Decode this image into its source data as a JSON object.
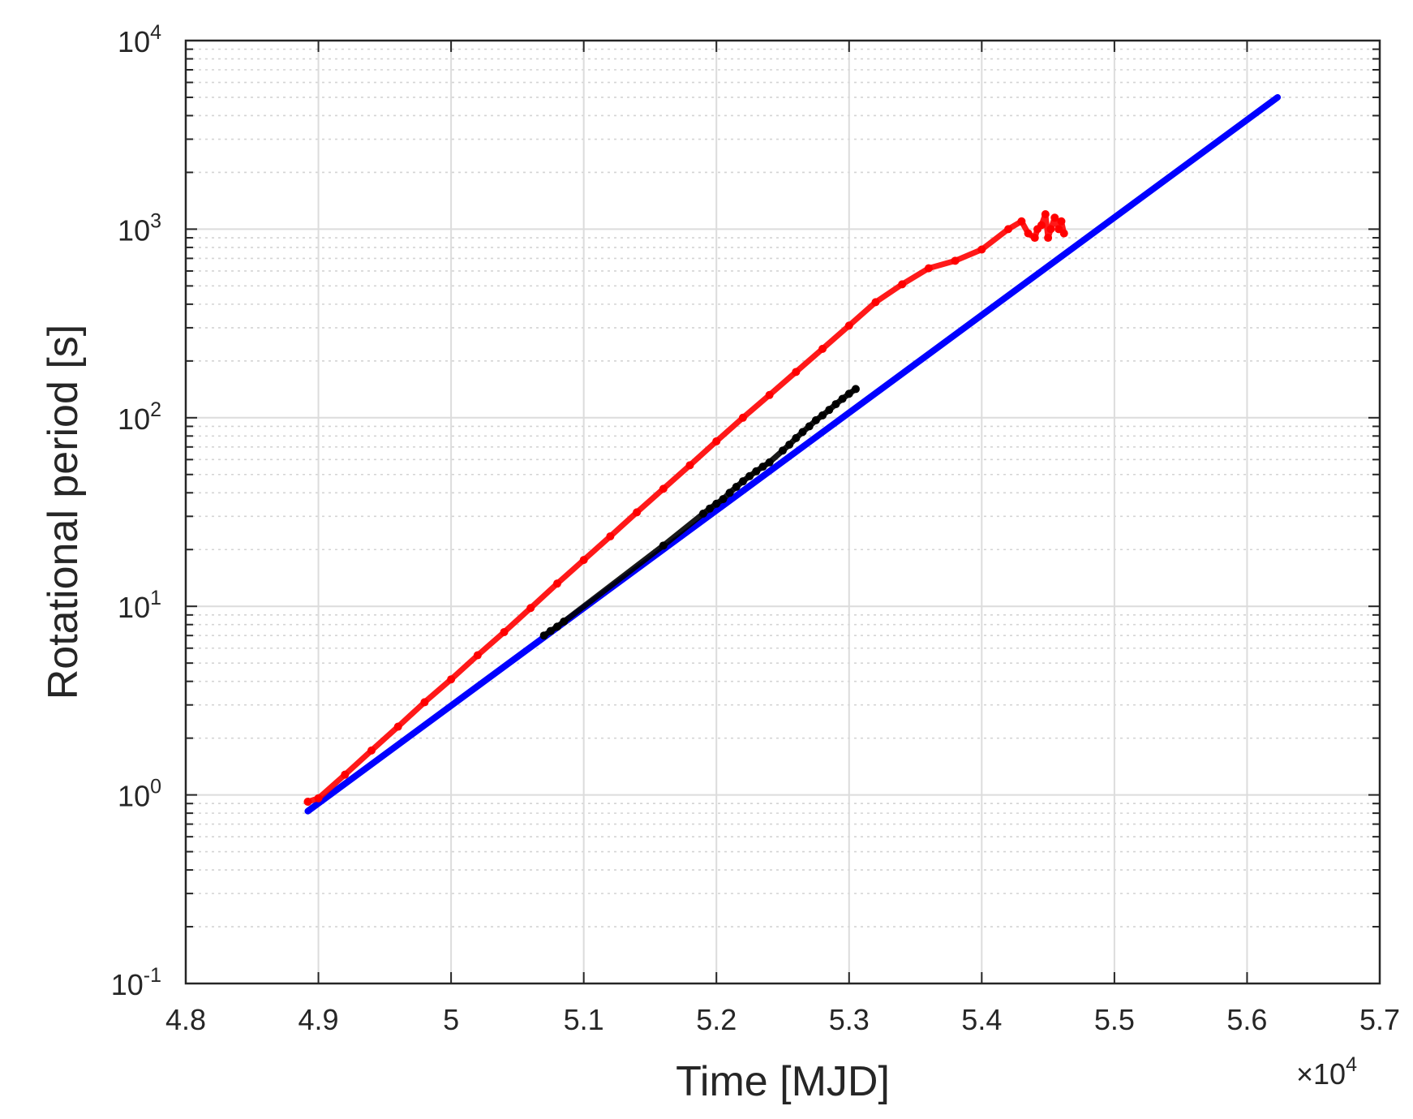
{
  "chart_data": {
    "type": "line",
    "xlabel": "Time [MJD]",
    "ylabel": "Rotational period [s]",
    "x_multiplier_label": "×10",
    "x_multiplier_exponent": "4",
    "x_scale": "linear",
    "y_scale": "log",
    "xlim": [
      48000,
      57000
    ],
    "ylim": [
      0.1,
      10000
    ],
    "x_ticks": [
      48000,
      49000,
      50000,
      51000,
      52000,
      53000,
      54000,
      55000,
      56000,
      57000
    ],
    "x_tick_labels": [
      "4.8",
      "4.9",
      "5",
      "5.1",
      "5.2",
      "5.3",
      "5.4",
      "5.5",
      "5.6",
      "5.7"
    ],
    "y_ticks": [
      0.1,
      1,
      10,
      100,
      1000,
      10000
    ],
    "y_tick_labels": [
      {
        "base": "10",
        "exp": "-1"
      },
      {
        "base": "10",
        "exp": "0"
      },
      {
        "base": "10",
        "exp": "1"
      },
      {
        "base": "10",
        "exp": "2"
      },
      {
        "base": "10",
        "exp": "3"
      },
      {
        "base": "10",
        "exp": "4"
      }
    ],
    "grid": true,
    "minor_grid": true,
    "series": [
      {
        "style": "line",
        "color": "#0000ff",
        "x": [
          48920,
          56230
        ],
        "y": [
          0.82,
          5000
        ]
      },
      {
        "style": "dots",
        "color": "#ff0000",
        "x": [
          48920,
          49000,
          49200,
          49400,
          49600,
          49800,
          50000,
          50200,
          50400,
          50600,
          50800,
          51000,
          51200,
          51400,
          51600,
          51800,
          52000,
          52200,
          52400,
          52600,
          52800,
          53000,
          53200,
          53400,
          53600,
          53800,
          54000,
          54200,
          54300,
          54350,
          54400,
          54420,
          54450,
          54480,
          54500,
          54520,
          54550,
          54580,
          54600,
          54620
        ],
        "y": [
          0.92,
          0.96,
          1.28,
          1.72,
          2.3,
          3.1,
          4.1,
          5.5,
          7.3,
          9.8,
          13.2,
          17.6,
          23.5,
          31.5,
          42,
          56,
          75,
          100,
          132,
          175,
          232,
          308,
          410,
          510,
          620,
          680,
          780,
          1000,
          1100,
          950,
          900,
          1000,
          1050,
          1200,
          900,
          1000,
          1150,
          1000,
          1100,
          950
        ]
      },
      {
        "style": "dots",
        "color": "#000000",
        "x": [
          50700,
          50750,
          50800,
          50850,
          51600,
          51900,
          51950,
          52000,
          52050,
          52100,
          52150,
          52200,
          52250,
          52300,
          52350,
          52400,
          52500,
          52550,
          52600,
          52650,
          52700,
          52750,
          52800,
          52850,
          52900,
          52950,
          53000,
          53050
        ],
        "y": [
          7.0,
          7.4,
          7.8,
          8.3,
          21,
          31,
          33,
          35,
          37,
          40,
          43,
          46,
          49,
          52,
          55,
          58,
          67,
          72,
          78,
          84,
          90,
          97,
          103,
          110,
          118,
          126,
          134,
          142
        ]
      }
    ]
  }
}
